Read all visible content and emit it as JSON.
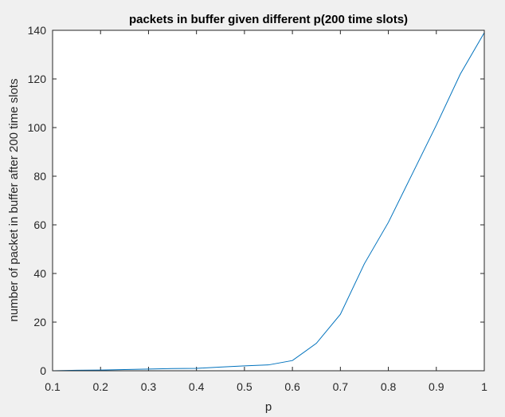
{
  "chart_data": {
    "type": "line",
    "title": "packets in buffer given different p(200 time slots)",
    "xlabel": "p",
    "ylabel": "number of packet in buffer after 200 time slots",
    "xlim": [
      0.1,
      1
    ],
    "ylim": [
      0,
      140
    ],
    "xticks": [
      "0.1",
      "0.2",
      "0.3",
      "0.4",
      "0.5",
      "0.6",
      "0.7",
      "0.8",
      "0.9",
      "1"
    ],
    "yticks": [
      "0",
      "20",
      "40",
      "60",
      "80",
      "100",
      "120",
      "140"
    ],
    "grid": false,
    "series": [
      {
        "color": "#0072bd",
        "x": [
          0.1,
          0.15,
          0.2,
          0.25,
          0.3,
          0.35,
          0.4,
          0.45,
          0.5,
          0.55,
          0.6,
          0.65,
          0.7,
          0.75,
          0.8,
          0.85,
          0.9,
          0.95,
          1.0
        ],
        "y": [
          0,
          0.2,
          0.3,
          0.5,
          0.7,
          0.9,
          1.0,
          1.5,
          2.0,
          2.4,
          4.2,
          11.3,
          23.2,
          44.0,
          61.0,
          81.0,
          101.0,
          122.0,
          139.0
        ]
      }
    ]
  }
}
